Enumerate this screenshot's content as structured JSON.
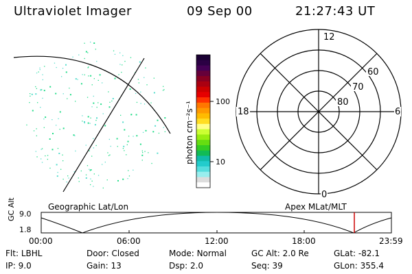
{
  "header": {
    "title": "Ultraviolet Imager",
    "date": "09 Sep 00",
    "time": "21:27:43 UT"
  },
  "image_panel": {
    "label": "Geographic Lat/Lon",
    "speckle_color": "#22dd88"
  },
  "colorbar": {
    "label": "photon cm⁻²s⁻¹",
    "ticks": [
      "100",
      "10"
    ],
    "colors": [
      "#1a0033",
      "#2b0044",
      "#440055",
      "#66003a",
      "#880022",
      "#aa0011",
      "#cc0000",
      "#e60000",
      "#ff3300",
      "#ff7700",
      "#ff9900",
      "#ffbb00",
      "#ffdd22",
      "#ffff88",
      "#ccff33",
      "#99ee11",
      "#66dd11",
      "#33cc22",
      "#11bb55",
      "#11bbaa",
      "#22cccc",
      "#55dddd",
      "#99eeee",
      "#dddddd",
      "#ffffff"
    ]
  },
  "polar_panel": {
    "label": "Apex MLat/MLT",
    "mlt_labels": {
      "top": "12",
      "left": "18",
      "right": "6",
      "bottom": "0"
    },
    "lat_labels": [
      "60",
      "70",
      "80"
    ]
  },
  "timeline": {
    "ylabel": "GC Alt",
    "ymax": "9.0",
    "ymin": "1.8",
    "xticks": [
      "00:00",
      "06:00",
      "12:00",
      "18:00",
      "23:59"
    ],
    "marker_color": "#cc0000",
    "marker_time_hours": 21.46
  },
  "footer": {
    "row1": [
      {
        "key": "Flt:",
        "value": "LBHL"
      },
      {
        "key": "Door:",
        "value": "Closed"
      },
      {
        "key": "Mode:",
        "value": "Normal"
      },
      {
        "key": "GC Alt:",
        "value": "2.0 Re"
      },
      {
        "key": "GLat:",
        "value": "-82.1"
      }
    ],
    "row2": [
      {
        "key": "IP:",
        "value": "9.0"
      },
      {
        "key": "Gain:",
        "value": "13"
      },
      {
        "key": "Dsp:",
        "value": "2.0"
      },
      {
        "key": "Seq:",
        "value": "39"
      },
      {
        "key": "GLon:",
        "value": "355.4"
      }
    ]
  }
}
